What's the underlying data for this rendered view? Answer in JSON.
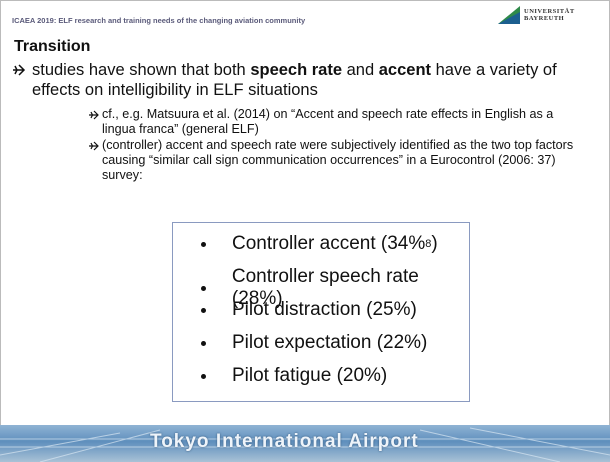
{
  "header": {
    "title": "ICAEA 2019: ELF research and training needs of the changing aviation community",
    "logo": [
      "UNIVERSITÄT",
      "BAYREUTH"
    ]
  },
  "slide": {
    "title": "Transition",
    "bullet": [
      "studies have shown that both ",
      "speech rate",
      " and ",
      "accent",
      " have a variety of effects on intelligibility in ELF situations"
    ],
    "subbullets": [
      "cf., e.g. Matsuura et al. (2014) on “Accent and speech rate effects in English as a lingua franca” (general ELF)",
      "(controller) accent and speech rate were subjectively identified as the two top factors causing “similar call sign communication occurrences” in a Eurocontrol (2006: 37) survey:"
    ],
    "list": [
      {
        "text": "Controller accent (34% ",
        "sup": "8",
        "after": ")"
      },
      {
        "text": "Controller speech rate (28%)"
      },
      {
        "text": "Pilot distraction (25%)"
      },
      {
        "text": "Pilot expectation (22%)"
      },
      {
        "text": "Pilot fatigue (20%)"
      }
    ]
  },
  "footer": {
    "banner": "Tokyo International Airport"
  }
}
